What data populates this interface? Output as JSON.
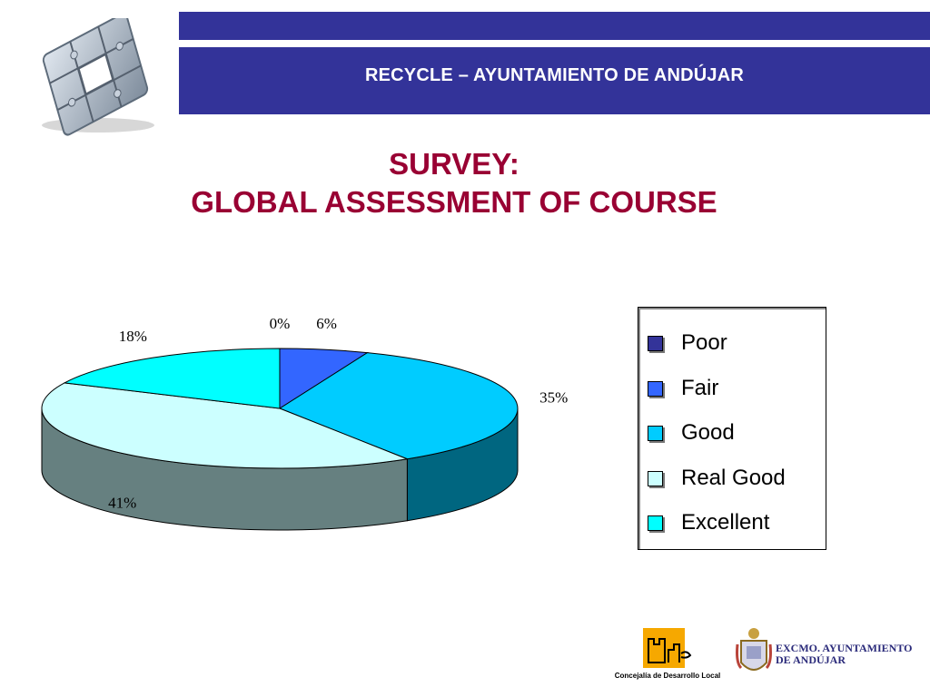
{
  "header": {
    "title": "RECYCLE – AYUNTAMIENTO DE ANDÚJAR"
  },
  "slide": {
    "title_line1": "SURVEY:",
    "title_line2": "GLOBAL ASSESSMENT OF COURSE"
  },
  "chart_data": {
    "type": "pie",
    "categories": [
      "Poor",
      "Fair",
      "Good",
      "Real Good",
      "Excellent"
    ],
    "values": [
      0,
      6,
      35,
      41,
      18
    ],
    "data_labels": [
      "0%",
      "6%",
      "35%",
      "41%",
      "18%"
    ],
    "colors": [
      "#333399",
      "#3366ff",
      "#00ccff",
      "#ccffff",
      "#00ffff"
    ],
    "legend_position": "right",
    "three_d": true
  },
  "footer": {
    "left_caption": "Concejalía de Desarrollo Local",
    "right_text_line1": "EXCMO. AYUNTAMIENTO",
    "right_text_line2": "DE ANDÚJAR"
  }
}
